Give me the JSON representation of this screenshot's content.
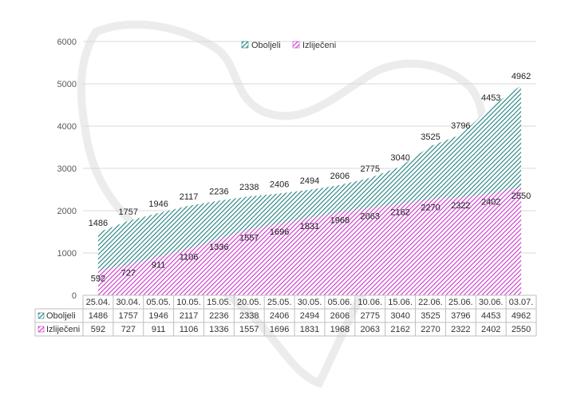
{
  "chart_data": {
    "type": "area",
    "title": "",
    "xlabel": "",
    "ylabel": "",
    "ylim": [
      0,
      6000
    ],
    "yticks": [
      0,
      1000,
      2000,
      3000,
      4000,
      5000,
      6000
    ],
    "grid": true,
    "legend_position": "top",
    "categories": [
      "25.04.",
      "30.04.",
      "05.05.",
      "10.05.",
      "15.05.",
      "20.05.",
      "25.05.",
      "30.05.",
      "05.06.",
      "10.06.",
      "15.06.",
      "22.06.",
      "25.06.",
      "30.06.",
      "03.07."
    ],
    "series": [
      {
        "name": "Oboljeli",
        "color": "#1f8a8a",
        "values": [
          1486,
          1757,
          1946,
          2117,
          2236,
          2338,
          2406,
          2494,
          2606,
          2775,
          3040,
          3525,
          3796,
          4453,
          4962
        ]
      },
      {
        "name": "Izliječeni",
        "color": "#cc33cc",
        "values": [
          592,
          727,
          911,
          1106,
          1336,
          1557,
          1696,
          1831,
          1968,
          2063,
          2162,
          2270,
          2322,
          2402,
          2550
        ]
      }
    ]
  }
}
